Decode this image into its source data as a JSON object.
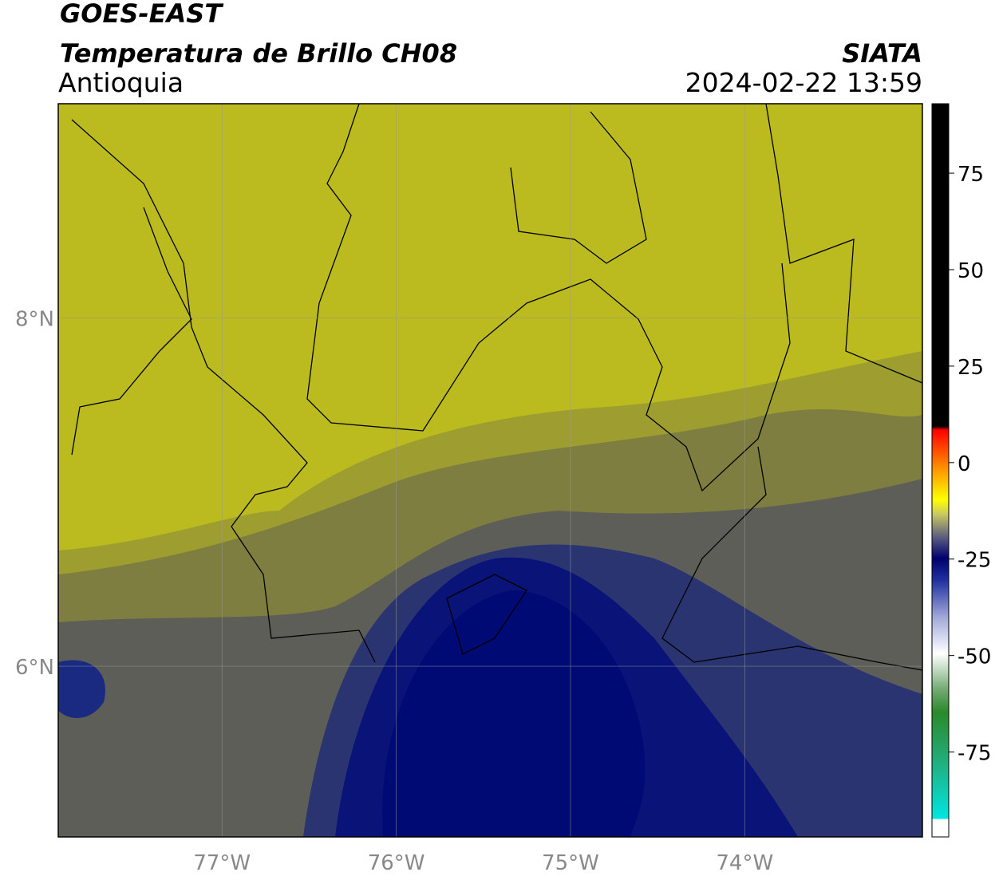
{
  "header": {
    "satellite": "GOES-EAST",
    "product": "Temperatura de Brillo CH08",
    "region": "Antioquia",
    "source": "SIATA",
    "datetime": "2024-02-22 13:59"
  },
  "map": {
    "xlim": [
      -77.94,
      -72.98
    ],
    "ylim": [
      5.02,
      9.23
    ],
    "xticks": [
      {
        "value": -77,
        "label": "77°W"
      },
      {
        "value": -76,
        "label": "76°W"
      },
      {
        "value": -75,
        "label": "75°W"
      },
      {
        "value": -74,
        "label": "74°W"
      }
    ],
    "yticks": [
      {
        "value": 8,
        "label": "8°N"
      },
      {
        "value": 6,
        "label": "6°N"
      }
    ],
    "grid": true
  },
  "colorbar": {
    "lim": [
      -97,
      93
    ],
    "ticks": [
      75,
      50,
      25,
      0,
      -25,
      -50,
      -75
    ]
  }
}
